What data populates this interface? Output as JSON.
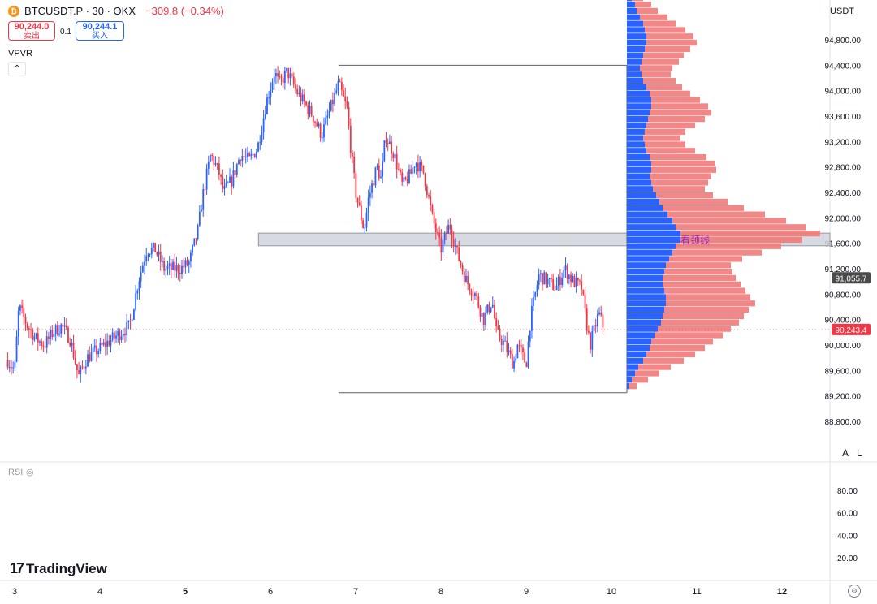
{
  "header": {
    "symbol": "BTCUSDT.P · 30 · OKX",
    "change": "−309.8 (−0.34%)",
    "sell_price": "90,244.0",
    "sell_label": "卖出",
    "buy_price": "90,244.1",
    "buy_label": "买入",
    "spread": "0.1",
    "currency": "USDT"
  },
  "indicator": {
    "name": "VPVR",
    "collapse": "⌃"
  },
  "rsi": {
    "label": "RSI"
  },
  "brand": {
    "name": "TradingView"
  },
  "axis_buttons": {
    "auto": "A",
    "log": "L"
  },
  "colors": {
    "up": "#2962ff",
    "down": "#f23645",
    "vp_up": "#2962ff",
    "vp_down": "#f07a7a",
    "zone_fill": "#d1d4dc",
    "zone_text": "#9c27b0",
    "poc_label_bg": "#4a4a4a",
    "price_label_bg": "#f23645"
  },
  "chart_data": {
    "type": "candlestick",
    "ylim": [
      88600,
      94960
    ],
    "x_ticks": [
      "3",
      "4",
      "5",
      "6",
      "7",
      "8",
      "9",
      "10",
      "11",
      "12"
    ],
    "x_ticks_bold": [
      "5",
      "12"
    ],
    "y_ticks": [
      88800,
      89200,
      89600,
      90000,
      90400,
      90800,
      91200,
      91600,
      92000,
      92400,
      92800,
      93200,
      93600,
      94000,
      94400,
      94800
    ],
    "y_tick_labels": [
      "88,800.00",
      "89,200.00",
      "89,600.00",
      "90,000.00",
      "90,400.00",
      "90,800.00",
      "91,200.00",
      "91,600.00",
      "92,000.00",
      "92,400.00",
      "92,800.00",
      "93,200.00",
      "93,600.00",
      "94,000.00",
      "94,400.00",
      "94,800.00"
    ],
    "last_price": 90243.4,
    "last_price_label": "90,243.4",
    "poc_price": 91055.7,
    "poc_label": "91,055.7",
    "path_days": [
      2.9,
      3.0,
      3.05,
      3.15,
      3.25,
      3.35,
      3.45,
      3.55,
      3.65,
      3.75,
      3.85,
      3.95,
      4.05,
      4.15,
      4.25,
      4.35,
      4.45,
      4.55,
      4.65,
      4.75,
      4.85,
      4.95,
      5.05,
      5.15,
      5.2,
      5.3,
      5.4,
      5.45,
      5.55,
      5.65,
      5.75,
      5.85,
      5.95,
      6.05,
      6.1,
      6.2,
      6.3,
      6.4,
      6.5,
      6.6,
      6.7,
      6.8,
      6.9,
      6.95,
      7.0,
      7.1,
      7.15,
      7.25,
      7.3,
      7.35,
      7.45,
      7.55,
      7.65,
      7.7,
      7.8,
      7.9,
      8.0,
      8.1,
      8.2,
      8.3,
      8.4,
      8.5,
      8.6,
      8.65,
      8.75,
      8.85,
      8.9,
      9.0,
      9.05,
      9.15,
      9.25,
      9.35,
      9.45,
      9.55,
      9.65,
      9.7,
      9.75,
      9.85,
      9.9
    ],
    "path_prices": [
      89800,
      89600,
      90600,
      90300,
      90100,
      90000,
      90200,
      90300,
      90100,
      89500,
      89800,
      89900,
      90000,
      90100,
      90200,
      90300,
      91000,
      91500,
      91500,
      91200,
      91200,
      91200,
      91300,
      91800,
      92300,
      93000,
      92700,
      92400,
      92600,
      93000,
      92900,
      93100,
      93800,
      94300,
      94100,
      94300,
      94000,
      93800,
      93600,
      93300,
      93700,
      94100,
      93700,
      93000,
      92400,
      91800,
      92300,
      92800,
      92600,
      93300,
      93000,
      92500,
      92700,
      92900,
      92700,
      92000,
      91500,
      91900,
      91400,
      91000,
      90800,
      90400,
      90700,
      90200,
      90000,
      89700,
      90000,
      89700,
      90400,
      91100,
      91000,
      90900,
      91200,
      91000,
      90900,
      90400,
      90000,
      90500,
      90300
    ],
    "neckline": {
      "label": "看颈线",
      "top_price": 91760,
      "bottom_price": 91560,
      "start_day": 5.86
    },
    "range_box": {
      "top_price": 94400,
      "bottom_price": 89250,
      "start_day": 6.8
    },
    "volume_profile": {
      "bin_step": 100,
      "bins_low": 89300,
      "up_widths": [
        2,
        6,
        10,
        14,
        20,
        24,
        28,
        30,
        34,
        38,
        42,
        44,
        46,
        48,
        48,
        46,
        44,
        44,
        46,
        48,
        52,
        56,
        60,
        66,
        66,
        60,
        56,
        50,
        44,
        40,
        36,
        32,
        30,
        28,
        30,
        30,
        28,
        24,
        22,
        20,
        22,
        24,
        26,
        28,
        30,
        30,
        28,
        24,
        20,
        18,
        16,
        18,
        20,
        22,
        24,
        24,
        22,
        20,
        16,
        12,
        10,
        6,
        4
      ],
      "down_widths": [
        10,
        20,
        30,
        40,
        50,
        60,
        68,
        76,
        84,
        90,
        96,
        100,
        104,
        110,
        104,
        100,
        96,
        90,
        84,
        80,
        90,
        110,
        130,
        150,
        172,
        160,
        140,
        120,
        100,
        84,
        70,
        64,
        70,
        76,
        80,
        78,
        70,
        60,
        50,
        46,
        50,
        60,
        70,
        76,
        70,
        60,
        50,
        44,
        40,
        36,
        40,
        46,
        50,
        56,
        62,
        58,
        50,
        40,
        34,
        26,
        20,
        14,
        8
      ]
    }
  }
}
